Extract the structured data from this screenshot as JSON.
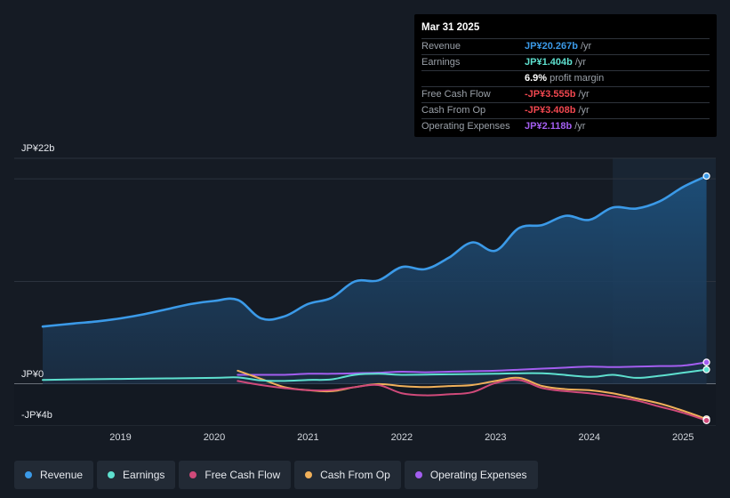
{
  "tooltip": {
    "date": "Mar 31 2025",
    "rows": [
      {
        "label": "Revenue",
        "value": "JP¥20.267b",
        "suffix": "/yr",
        "color": "#3b9ae8"
      },
      {
        "label": "Earnings",
        "value": "JP¥1.404b",
        "suffix": "/yr",
        "color": "#5ee0cf"
      },
      {
        "label": "",
        "value": "6.9%",
        "suffix": "profit margin",
        "color": "#ffffff"
      },
      {
        "label": "Free Cash Flow",
        "value": "-JP¥3.555b",
        "suffix": "/yr",
        "color": "#f0474f"
      },
      {
        "label": "Cash From Op",
        "value": "-JP¥3.408b",
        "suffix": "/yr",
        "color": "#f0474f"
      },
      {
        "label": "Operating Expenses",
        "value": "JP¥2.118b",
        "suffix": "/yr",
        "color": "#a35ef0"
      }
    ]
  },
  "legend": [
    {
      "label": "Revenue",
      "color": "#3b9ae8"
    },
    {
      "label": "Earnings",
      "color": "#5ee0cf"
    },
    {
      "label": "Free Cash Flow",
      "color": "#d04a7a"
    },
    {
      "label": "Cash From Op",
      "color": "#f0b05a"
    },
    {
      "label": "Operating Expenses",
      "color": "#a35ef0"
    }
  ],
  "chart_data": {
    "type": "area",
    "title": "",
    "xlabel": "",
    "ylabel": "",
    "ylim": [
      -4,
      22
    ],
    "xlim": [
      2018.17,
      2025.33
    ],
    "y_tick_labels": [
      {
        "value": 22,
        "label": "JP¥22b"
      },
      {
        "value": 0,
        "label": "JP¥0"
      },
      {
        "value": -4,
        "label": "-JP¥4b"
      }
    ],
    "x_ticks": [
      2019,
      2020,
      2021,
      2022,
      2023,
      2024,
      2025
    ],
    "gridlines": [
      22,
      20,
      10,
      0,
      -4
    ],
    "highlight_start": 2024.25,
    "series": [
      {
        "name": "Revenue",
        "color": "#3b9ae8",
        "fill": true,
        "x": [
          2018.17,
          2018.5,
          2018.75,
          2019.0,
          2019.25,
          2019.5,
          2019.75,
          2020.0,
          2020.25,
          2020.5,
          2020.75,
          2021.0,
          2021.25,
          2021.5,
          2021.75,
          2022.0,
          2022.25,
          2022.5,
          2022.75,
          2023.0,
          2023.25,
          2023.5,
          2023.75,
          2024.0,
          2024.25,
          2024.5,
          2024.75,
          2025.0,
          2025.25
        ],
        "values": [
          5.6,
          5.9,
          6.1,
          6.4,
          6.8,
          7.3,
          7.8,
          8.1,
          8.2,
          6.4,
          6.6,
          7.8,
          8.4,
          10.0,
          10.1,
          11.4,
          11.2,
          12.3,
          13.8,
          13.0,
          15.2,
          15.5,
          16.4,
          16.0,
          17.2,
          17.1,
          17.8,
          19.2,
          20.267
        ]
      },
      {
        "name": "Earnings",
        "color": "#5ee0cf",
        "fill": false,
        "x": [
          2018.17,
          2018.5,
          2019.0,
          2019.5,
          2020.0,
          2020.25,
          2020.5,
          2020.75,
          2021.0,
          2021.25,
          2021.5,
          2021.75,
          2022.0,
          2022.5,
          2023.0,
          2023.5,
          2024.0,
          2024.25,
          2024.5,
          2024.75,
          2025.0,
          2025.25
        ],
        "values": [
          0.4,
          0.45,
          0.5,
          0.55,
          0.6,
          0.65,
          0.35,
          0.3,
          0.4,
          0.45,
          0.9,
          1.0,
          0.9,
          0.95,
          1.0,
          1.05,
          0.7,
          0.9,
          0.6,
          0.8,
          1.1,
          1.404
        ]
      },
      {
        "name": "Free Cash Flow",
        "color": "#d04a7a",
        "fill": false,
        "x": [
          2020.25,
          2020.5,
          2020.75,
          2021.0,
          2021.25,
          2021.5,
          2021.75,
          2022.0,
          2022.25,
          2022.5,
          2022.75,
          2023.0,
          2023.25,
          2023.5,
          2023.75,
          2024.0,
          2024.25,
          2024.5,
          2024.75,
          2025.0,
          2025.25
        ],
        "values": [
          0.3,
          -0.1,
          -0.4,
          -0.6,
          -0.6,
          -0.3,
          -0.1,
          -0.9,
          -1.1,
          -1.0,
          -0.8,
          0.1,
          0.4,
          -0.4,
          -0.7,
          -0.9,
          -1.2,
          -1.6,
          -2.2,
          -2.8,
          -3.555
        ]
      },
      {
        "name": "Cash From Op",
        "color": "#f0b05a",
        "fill": false,
        "x": [
          2020.25,
          2020.5,
          2020.75,
          2021.0,
          2021.25,
          2021.5,
          2021.75,
          2022.0,
          2022.25,
          2022.5,
          2022.75,
          2023.0,
          2023.25,
          2023.5,
          2023.75,
          2024.0,
          2024.25,
          2024.5,
          2024.75,
          2025.0,
          2025.25
        ],
        "values": [
          1.3,
          0.5,
          -0.3,
          -0.6,
          -0.7,
          -0.3,
          0.0,
          -0.2,
          -0.3,
          -0.2,
          -0.1,
          0.3,
          0.6,
          -0.2,
          -0.5,
          -0.6,
          -0.9,
          -1.4,
          -1.9,
          -2.6,
          -3.408
        ]
      },
      {
        "name": "Operating Expenses",
        "color": "#a35ef0",
        "fill": false,
        "x": [
          2020.25,
          2020.5,
          2020.75,
          2021.0,
          2021.25,
          2021.5,
          2021.75,
          2022.0,
          2022.25,
          2022.5,
          2022.75,
          2023.0,
          2023.25,
          2023.5,
          2023.75,
          2024.0,
          2024.25,
          2024.5,
          2024.75,
          2025.0,
          2025.25
        ],
        "values": [
          0.9,
          0.9,
          0.9,
          1.0,
          1.0,
          1.05,
          1.1,
          1.2,
          1.15,
          1.2,
          1.25,
          1.3,
          1.4,
          1.5,
          1.6,
          1.7,
          1.65,
          1.7,
          1.75,
          1.8,
          2.118
        ]
      }
    ]
  }
}
